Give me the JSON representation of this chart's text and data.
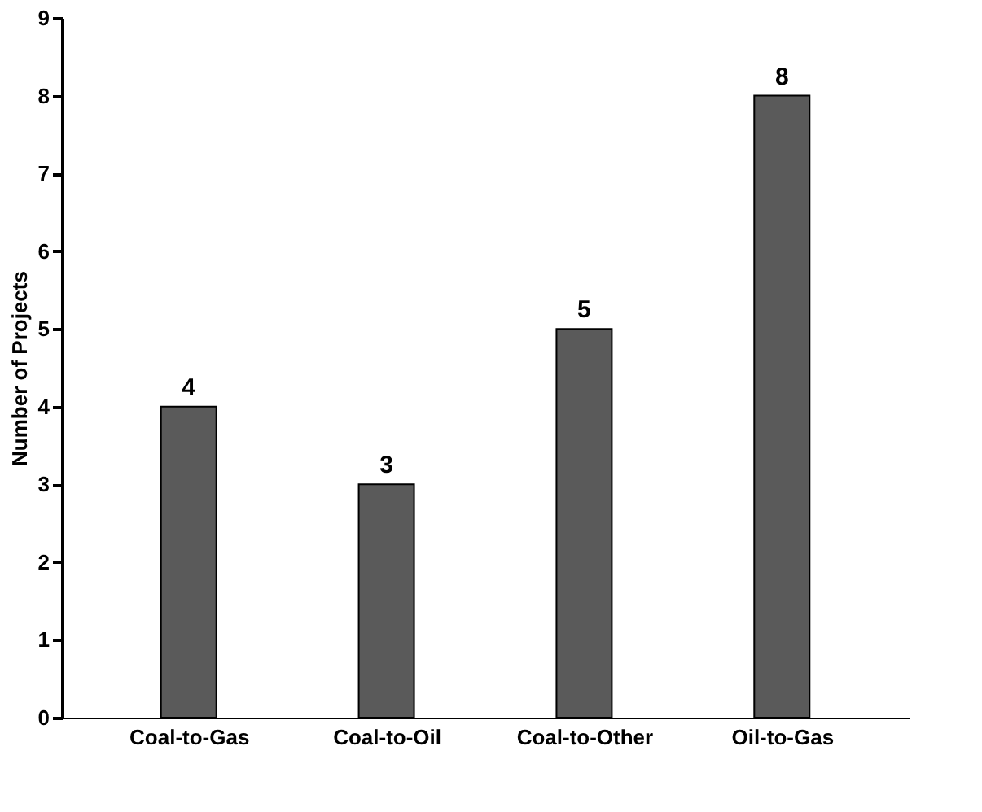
{
  "chart_data": {
    "type": "bar",
    "ylabel": "Number of Projects",
    "categories": [
      "Coal-to-Gas",
      "Coal-to-Oil",
      "Coal-to-Other",
      "Oil-to-Gas"
    ],
    "values": [
      4,
      3,
      5,
      8
    ],
    "color": "#5a5a5a",
    "ylim": [
      0,
      9
    ],
    "yticks": [
      0,
      1,
      2,
      3,
      4,
      5,
      6,
      7,
      8,
      9
    ],
    "grid": false,
    "data_labels": true
  }
}
